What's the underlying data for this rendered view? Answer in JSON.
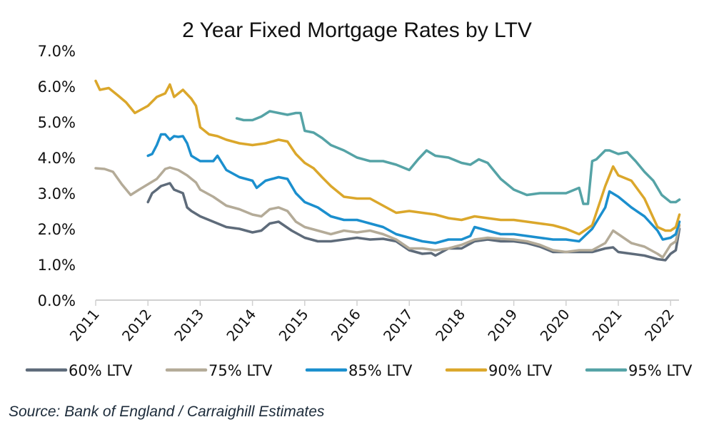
{
  "chart_data": {
    "type": "line",
    "title": "2 Year Fixed Mortgage Rates by LTV",
    "xlabel": "",
    "ylabel": "",
    "xlim": [
      2011,
      2022.2
    ],
    "ylim": [
      0,
      7
    ],
    "yticks": [
      "0.0%",
      "1.0%",
      "2.0%",
      "3.0%",
      "4.0%",
      "5.0%",
      "6.0%",
      "7.0%"
    ],
    "ytick_values": [
      0,
      1,
      2,
      3,
      4,
      5,
      6,
      7
    ],
    "xticks": [
      "2011",
      "2012",
      "2013",
      "2014",
      "2015",
      "2016",
      "2017",
      "2018",
      "2019",
      "2020",
      "2021",
      "2022"
    ],
    "xtick_values": [
      2011,
      2012,
      2013,
      2014,
      2015,
      2016,
      2017,
      2018,
      2019,
      2020,
      2021,
      2022
    ],
    "grid": false,
    "legend_position": "bottom",
    "series": [
      {
        "name": "60% LTV",
        "color": "#5e6b7a",
        "x": [
          2012.0,
          2012.08,
          2012.17,
          2012.25,
          2012.42,
          2012.5,
          2012.67,
          2012.75,
          2012.83,
          2013.0,
          2013.25,
          2013.5,
          2013.75,
          2014.0,
          2014.17,
          2014.33,
          2014.5,
          2014.75,
          2015.0,
          2015.25,
          2015.5,
          2015.75,
          2016.0,
          2016.25,
          2016.5,
          2016.75,
          2017.0,
          2017.25,
          2017.42,
          2017.5,
          2017.75,
          2018.0,
          2018.25,
          2018.5,
          2018.75,
          2019.0,
          2019.25,
          2019.5,
          2019.75,
          2020.0,
          2020.25,
          2020.5,
          2020.75,
          2020.9,
          2021.0,
          2021.25,
          2021.5,
          2021.75,
          2021.9,
          2022.0,
          2022.1,
          2022.17
        ],
        "values": [
          2.75,
          3.0,
          3.1,
          3.2,
          3.28,
          3.1,
          3.0,
          2.6,
          2.5,
          2.35,
          2.2,
          2.05,
          2.0,
          1.9,
          1.95,
          2.15,
          2.2,
          1.95,
          1.75,
          1.65,
          1.65,
          1.7,
          1.75,
          1.7,
          1.72,
          1.65,
          1.4,
          1.3,
          1.32,
          1.25,
          1.45,
          1.45,
          1.65,
          1.7,
          1.65,
          1.65,
          1.6,
          1.5,
          1.35,
          1.35,
          1.35,
          1.35,
          1.45,
          1.48,
          1.35,
          1.3,
          1.25,
          1.15,
          1.12,
          1.3,
          1.4,
          2.0
        ]
      },
      {
        "name": "75% LTV",
        "color": "#b4ab98",
        "x": [
          2011.0,
          2011.17,
          2011.33,
          2011.5,
          2011.67,
          2011.83,
          2012.0,
          2012.17,
          2012.33,
          2012.42,
          2012.58,
          2012.75,
          2012.92,
          2013.0,
          2013.25,
          2013.5,
          2013.75,
          2014.0,
          2014.17,
          2014.33,
          2014.5,
          2014.67,
          2014.83,
          2015.0,
          2015.25,
          2015.5,
          2015.75,
          2016.0,
          2016.25,
          2016.5,
          2016.75,
          2017.0,
          2017.25,
          2017.5,
          2017.75,
          2018.0,
          2018.25,
          2018.5,
          2018.75,
          2019.0,
          2019.25,
          2019.5,
          2019.75,
          2020.0,
          2020.25,
          2020.5,
          2020.75,
          2020.9,
          2021.0,
          2021.25,
          2021.5,
          2021.75,
          2021.85,
          2022.0,
          2022.1,
          2022.17
        ],
        "values": [
          3.7,
          3.68,
          3.6,
          3.25,
          2.95,
          3.1,
          3.25,
          3.4,
          3.68,
          3.72,
          3.65,
          3.5,
          3.3,
          3.1,
          2.9,
          2.65,
          2.55,
          2.4,
          2.35,
          2.55,
          2.6,
          2.5,
          2.2,
          2.05,
          1.95,
          1.85,
          1.95,
          1.9,
          1.95,
          1.85,
          1.7,
          1.45,
          1.45,
          1.4,
          1.45,
          1.55,
          1.7,
          1.75,
          1.72,
          1.7,
          1.65,
          1.55,
          1.4,
          1.35,
          1.4,
          1.4,
          1.6,
          1.95,
          1.85,
          1.6,
          1.5,
          1.3,
          1.2,
          1.55,
          1.65,
          2.1
        ]
      },
      {
        "name": "85% LTV",
        "color": "#1b8fce",
        "x": [
          2012.0,
          2012.08,
          2012.17,
          2012.25,
          2012.33,
          2012.42,
          2012.5,
          2012.58,
          2012.67,
          2012.75,
          2012.83,
          2013.0,
          2013.25,
          2013.33,
          2013.5,
          2013.75,
          2014.0,
          2014.08,
          2014.25,
          2014.5,
          2014.67,
          2014.83,
          2015.0,
          2015.25,
          2015.5,
          2015.75,
          2016.0,
          2016.25,
          2016.5,
          2016.75,
          2017.0,
          2017.25,
          2017.5,
          2017.75,
          2018.0,
          2018.17,
          2018.25,
          2018.5,
          2018.75,
          2019.0,
          2019.25,
          2019.5,
          2019.75,
          2020.0,
          2020.25,
          2020.5,
          2020.75,
          2020.83,
          2021.0,
          2021.25,
          2021.5,
          2021.75,
          2021.85,
          2022.0,
          2022.1,
          2022.17
        ],
        "values": [
          4.05,
          4.1,
          4.35,
          4.65,
          4.65,
          4.5,
          4.6,
          4.58,
          4.6,
          4.4,
          4.05,
          3.9,
          3.9,
          4.05,
          3.65,
          3.45,
          3.35,
          3.15,
          3.35,
          3.45,
          3.4,
          3.0,
          2.75,
          2.6,
          2.35,
          2.25,
          2.25,
          2.15,
          2.05,
          1.85,
          1.75,
          1.65,
          1.6,
          1.7,
          1.7,
          1.8,
          2.05,
          1.95,
          1.85,
          1.85,
          1.8,
          1.75,
          1.7,
          1.7,
          1.65,
          2.0,
          2.6,
          3.05,
          2.9,
          2.6,
          2.35,
          1.95,
          1.7,
          1.75,
          1.85,
          2.2
        ]
      },
      {
        "name": "90% LTV",
        "color": "#dba72b",
        "x": [
          2011.0,
          2011.08,
          2011.25,
          2011.42,
          2011.58,
          2011.75,
          2012.0,
          2012.17,
          2012.33,
          2012.42,
          2012.5,
          2012.67,
          2012.83,
          2012.92,
          2013.0,
          2013.17,
          2013.33,
          2013.5,
          2013.75,
          2014.0,
          2014.25,
          2014.5,
          2014.67,
          2014.83,
          2015.0,
          2015.17,
          2015.33,
          2015.5,
          2015.75,
          2016.0,
          2016.25,
          2016.5,
          2016.75,
          2017.0,
          2017.25,
          2017.5,
          2017.75,
          2018.0,
          2018.25,
          2018.5,
          2018.75,
          2019.0,
          2019.25,
          2019.5,
          2019.75,
          2020.0,
          2020.25,
          2020.5,
          2020.75,
          2020.9,
          2021.0,
          2021.25,
          2021.5,
          2021.75,
          2021.9,
          2022.0,
          2022.1,
          2022.17
        ],
        "values": [
          6.15,
          5.9,
          5.95,
          5.75,
          5.55,
          5.25,
          5.45,
          5.7,
          5.8,
          6.05,
          5.7,
          5.9,
          5.65,
          5.45,
          4.85,
          4.65,
          4.6,
          4.5,
          4.4,
          4.35,
          4.4,
          4.5,
          4.45,
          4.1,
          3.85,
          3.7,
          3.45,
          3.2,
          2.9,
          2.85,
          2.85,
          2.65,
          2.45,
          2.5,
          2.45,
          2.4,
          2.3,
          2.25,
          2.35,
          2.3,
          2.25,
          2.25,
          2.2,
          2.15,
          2.1,
          2.0,
          1.85,
          2.1,
          3.2,
          3.75,
          3.5,
          3.35,
          2.85,
          2.05,
          1.95,
          1.95,
          2.05,
          2.4
        ]
      },
      {
        "name": "95% LTV",
        "color": "#55a3a6",
        "x": [
          2013.7,
          2013.83,
          2014.0,
          2014.17,
          2014.33,
          2014.5,
          2014.67,
          2014.83,
          2014.92,
          2015.0,
          2015.17,
          2015.33,
          2015.5,
          2015.75,
          2016.0,
          2016.25,
          2016.5,
          2016.75,
          2017.0,
          2017.17,
          2017.33,
          2017.5,
          2017.75,
          2018.0,
          2018.17,
          2018.33,
          2018.5,
          2018.75,
          2019.0,
          2019.25,
          2019.5,
          2019.75,
          2020.0,
          2020.25,
          2020.33,
          2020.42,
          2020.5,
          2020.58,
          2020.75,
          2020.83,
          2021.0,
          2021.17,
          2021.33,
          2021.5,
          2021.67,
          2021.83,
          2022.0,
          2022.1,
          2022.17
        ],
        "values": [
          5.1,
          5.05,
          5.05,
          5.15,
          5.3,
          5.25,
          5.2,
          5.25,
          5.25,
          4.75,
          4.7,
          4.55,
          4.35,
          4.2,
          4.0,
          3.9,
          3.9,
          3.8,
          3.65,
          3.95,
          4.2,
          4.05,
          4.0,
          3.85,
          3.8,
          3.95,
          3.85,
          3.4,
          3.1,
          2.95,
          3.0,
          3.0,
          3.0,
          3.15,
          2.7,
          2.7,
          3.9,
          3.95,
          4.2,
          4.2,
          4.1,
          4.15,
          3.9,
          3.6,
          3.35,
          2.95,
          2.75,
          2.75,
          2.82
        ]
      }
    ]
  },
  "source": "Source: Bank of England / Carraighill Estimates"
}
